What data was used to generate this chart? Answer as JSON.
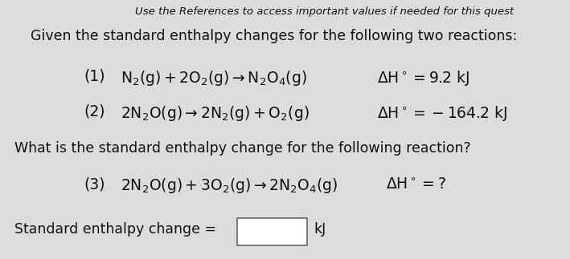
{
  "bg_color": "#dcdcdc",
  "header_text": "Use the References to access important values if needed for this quest",
  "intro_text": "Given the standard enthalpy changes for the following two reactions:",
  "r1_label": "(1)",
  "r1_eq": "$\\mathrm{N_2(g) + 2O_2(g) \\rightarrow N_2O_4(g)}$",
  "r1_dH": "$\\mathrm{\\Delta H^\\circ = 9.2\\ kJ}$",
  "r2_label": "(2)",
  "r2_eq": "$\\mathrm{2N_2O(g) \\rightarrow 2N_2(g) + O_2(g)}$",
  "r2_dH": "$\\mathrm{\\Delta H^\\circ = -164.2\\ kJ}$",
  "question_text": "What is the standard enthalpy change for the following reaction?",
  "r3_label": "(3)",
  "r3_eq": "$\\mathrm{2N_2O(g) + 3O_2(g) \\rightarrow 2N_2O_4(g)}$",
  "r3_dH": "$\\mathrm{\\Delta H^\\circ =?}$",
  "answer_label": "Standard enthalpy change =",
  "answer_unit": "kJ",
  "header_fontsize": 9.5,
  "intro_fontsize": 12.5,
  "eq_fontsize": 13.5,
  "ans_fontsize": 12.5
}
